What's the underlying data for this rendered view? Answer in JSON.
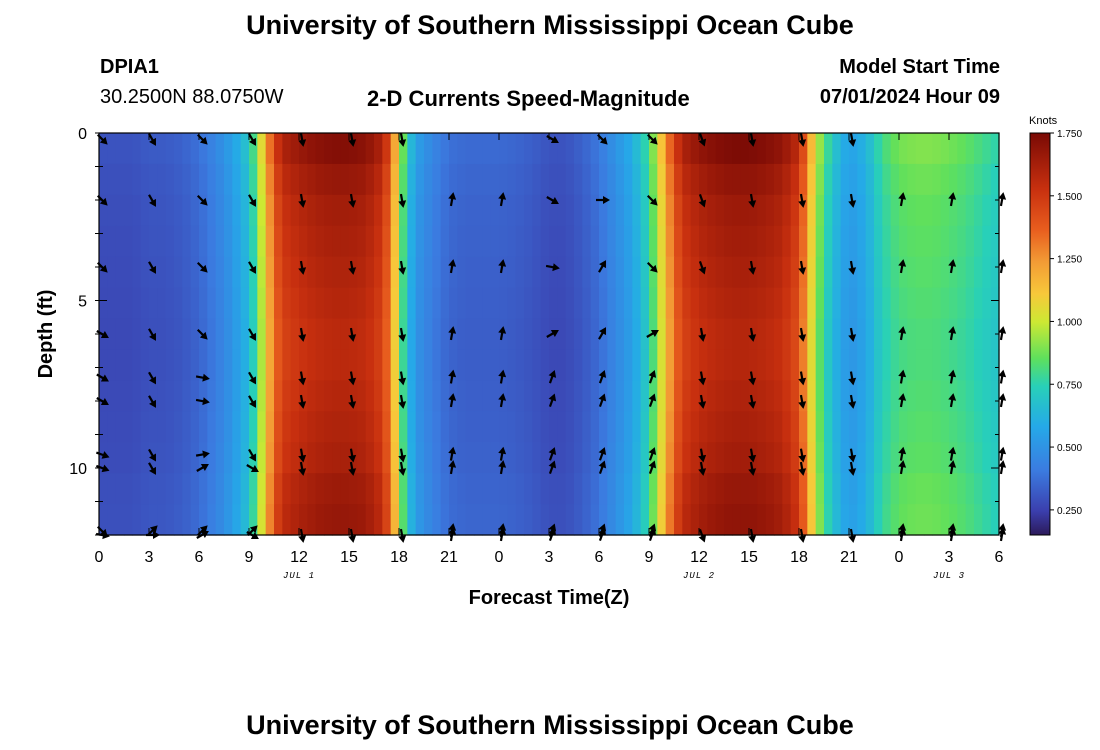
{
  "header": {
    "title": "University of Southern Mississippi Ocean Cube",
    "station_id": "DPIA1",
    "station_coords": "30.2500N  88.0750W",
    "product": "2-D Currents Speed-Magnitude",
    "model_start_label": "Model Start Time",
    "model_start_value": "07/01/2024 Hour 09"
  },
  "footer": {
    "title": "University of Southern Mississippi Ocean Cube"
  },
  "chart_data": {
    "type": "heatmap",
    "title": "2-D Currents Speed-Magnitude",
    "xlabel": "Forecast Time(Z)",
    "ylabel": "Depth (ft)",
    "x_hours_range": [
      0,
      54
    ],
    "ylim": [
      0,
      12
    ],
    "x_ticks": [
      {
        "h": 0,
        "label": "0"
      },
      {
        "h": 3,
        "label": "3"
      },
      {
        "h": 6,
        "label": "6"
      },
      {
        "h": 9,
        "label": "9"
      },
      {
        "h": 12,
        "label": "12"
      },
      {
        "h": 15,
        "label": "15"
      },
      {
        "h": 18,
        "label": "18"
      },
      {
        "h": 21,
        "label": "21"
      },
      {
        "h": 24,
        "label": "0"
      },
      {
        "h": 27,
        "label": "3"
      },
      {
        "h": 30,
        "label": "6"
      },
      {
        "h": 33,
        "label": "9"
      },
      {
        "h": 36,
        "label": "12"
      },
      {
        "h": 39,
        "label": "15"
      },
      {
        "h": 42,
        "label": "18"
      },
      {
        "h": 45,
        "label": "21"
      },
      {
        "h": 48,
        "label": "0"
      },
      {
        "h": 51,
        "label": "3"
      },
      {
        "h": 54,
        "label": "6"
      }
    ],
    "y_ticks": [
      {
        "v": 0,
        "label": "0"
      },
      {
        "v": 5,
        "label": "5"
      },
      {
        "v": 10,
        "label": "10"
      }
    ],
    "date_labels": [
      {
        "h": 12,
        "label": "JUL 1"
      },
      {
        "h": 36,
        "label": "JUL 2"
      },
      {
        "h": 51,
        "label": "JUL 3"
      }
    ],
    "colorbar": {
      "unit": "Knots",
      "min": 0.15,
      "max": 1.75,
      "ticks": [
        {
          "v": 1.75,
          "label": "1.750"
        },
        {
          "v": 1.5,
          "label": "1.500"
        },
        {
          "v": 1.25,
          "label": "1.250"
        },
        {
          "v": 1.0,
          "label": "1.000"
        },
        {
          "v": 0.75,
          "label": "0.750"
        },
        {
          "v": 0.5,
          "label": "0.500"
        },
        {
          "v": 0.25,
          "label": "0.250"
        }
      ]
    },
    "speed_profile": {
      "hours": [
        0,
        1,
        2,
        3,
        4,
        5,
        6,
        7,
        8,
        9,
        9.5,
        10,
        10.5,
        11,
        12,
        13,
        14,
        15,
        16,
        17,
        17.5,
        18,
        18.5,
        19,
        20,
        21,
        22,
        23,
        24,
        25,
        26,
        27,
        28,
        29,
        30,
        31,
        32,
        33,
        33.5,
        34,
        34.5,
        35,
        36,
        37,
        38,
        39,
        40,
        41,
        42,
        42.5,
        43,
        44,
        45,
        46,
        47,
        48,
        49,
        50,
        51,
        52,
        53,
        54
      ],
      "knots": [
        0.3,
        0.3,
        0.3,
        0.32,
        0.32,
        0.34,
        0.38,
        0.45,
        0.55,
        0.7,
        0.9,
        1.2,
        1.45,
        1.6,
        1.66,
        1.7,
        1.72,
        1.72,
        1.7,
        1.6,
        1.4,
        1.0,
        0.72,
        0.55,
        0.45,
        0.38,
        0.36,
        0.36,
        0.36,
        0.35,
        0.33,
        0.3,
        0.3,
        0.34,
        0.4,
        0.5,
        0.6,
        0.8,
        1.0,
        1.25,
        1.45,
        1.6,
        1.68,
        1.72,
        1.74,
        1.74,
        1.72,
        1.68,
        1.55,
        1.3,
        1.0,
        0.7,
        0.55,
        0.62,
        0.8,
        0.88,
        0.9,
        0.9,
        0.88,
        0.85,
        0.8,
        0.75
      ]
    },
    "depth_factors": [
      1.0,
      0.97,
      0.95,
      0.94,
      0.93,
      0.92,
      0.91,
      0.91,
      0.92,
      0.93,
      0.94,
      0.96,
      0.97
    ],
    "vector_columns": [
      {
        "h": 0,
        "dirs": [
          135,
          135,
          135,
          120,
          120,
          120,
          110,
          110,
          100,
          135
        ]
      },
      {
        "h": 3,
        "dirs": [
          150,
          150,
          150,
          150,
          150,
          150,
          150,
          150,
          90,
          45
        ]
      },
      {
        "h": 6,
        "dirs": [
          135,
          135,
          135,
          135,
          100,
          100,
          80,
          60,
          60,
          45
        ]
      },
      {
        "h": 9,
        "dirs": [
          150,
          150,
          150,
          150,
          150,
          150,
          150,
          120,
          120,
          45
        ]
      },
      {
        "h": 12,
        "dirs": [
          170,
          170,
          170,
          170,
          170,
          170,
          170,
          170,
          170,
          null
        ]
      },
      {
        "h": 15,
        "dirs": [
          170,
          170,
          170,
          170,
          170,
          170,
          170,
          170,
          170,
          null
        ]
      },
      {
        "h": 18,
        "dirs": [
          170,
          170,
          170,
          170,
          170,
          170,
          170,
          170,
          170,
          null
        ]
      },
      {
        "h": 21,
        "dirs": [
          null,
          10,
          10,
          10,
          10,
          10,
          10,
          10,
          10,
          10
        ]
      },
      {
        "h": 24,
        "dirs": [
          null,
          10,
          10,
          10,
          10,
          10,
          10,
          10,
          10,
          10
        ]
      },
      {
        "h": 27,
        "dirs": [
          120,
          120,
          100,
          60,
          20,
          20,
          20,
          20,
          20,
          20
        ]
      },
      {
        "h": 30,
        "dirs": [
          135,
          90,
          30,
          30,
          20,
          20,
          20,
          20,
          20,
          20
        ]
      },
      {
        "h": 33,
        "dirs": [
          135,
          135,
          135,
          60,
          20,
          20,
          20,
          20,
          20,
          20
        ]
      },
      {
        "h": 36,
        "dirs": [
          160,
          160,
          160,
          170,
          170,
          170,
          170,
          170,
          160,
          null
        ]
      },
      {
        "h": 39,
        "dirs": [
          170,
          170,
          170,
          170,
          170,
          170,
          170,
          170,
          170,
          null
        ]
      },
      {
        "h": 42,
        "dirs": [
          170,
          170,
          170,
          170,
          170,
          170,
          170,
          170,
          170,
          null
        ]
      },
      {
        "h": 45,
        "dirs": [
          170,
          170,
          170,
          170,
          170,
          170,
          170,
          170,
          170,
          null
        ]
      },
      {
        "h": 48,
        "dirs": [
          null,
          10,
          10,
          10,
          10,
          10,
          10,
          10,
          10,
          10
        ]
      },
      {
        "h": 51,
        "dirs": [
          null,
          10,
          10,
          10,
          10,
          10,
          10,
          10,
          10,
          10
        ]
      },
      {
        "h": 54,
        "dirs": [
          null,
          10,
          10,
          10,
          10,
          10,
          10,
          10,
          10,
          10
        ]
      }
    ],
    "vector_depths": [
      0,
      2,
      4,
      6,
      7.3,
      8,
      9.6,
      10,
      12,
      12
    ]
  }
}
